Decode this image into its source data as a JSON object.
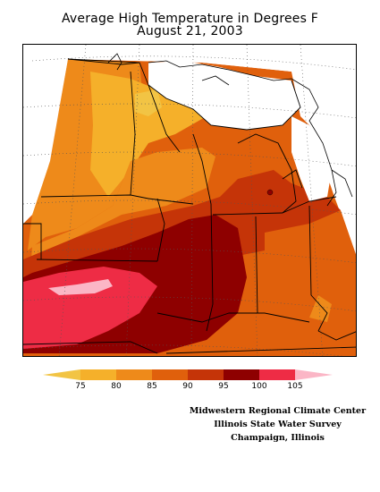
{
  "title": "Average High Temperature in Degrees F",
  "subtitle": "August 21, 2003",
  "legend": {
    "ticks": [
      "75",
      "80",
      "85",
      "90",
      "95",
      "100",
      "105"
    ],
    "colors": [
      "#f2c444",
      "#f5b02a",
      "#ee8a1a",
      "#e0600c",
      "#c53408",
      "#8e0000",
      "#ee2c45",
      "#fbb6c6"
    ]
  },
  "credits": [
    "Midwestern Regional Climate Center",
    "Illinois State Water Survey",
    "Champaign, Illinois"
  ]
}
